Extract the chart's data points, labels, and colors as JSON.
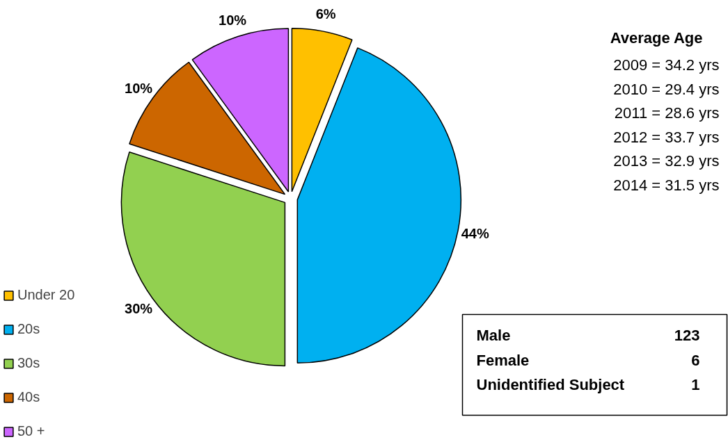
{
  "chart_data": {
    "type": "pie",
    "categories": [
      "Under 20",
      "20s",
      "30s",
      "40s",
      "50 +"
    ],
    "values": [
      6,
      44,
      30,
      10,
      10
    ],
    "colors": [
      "#ffc000",
      "#00b0f0",
      "#92d050",
      "#cc6600",
      "#cc66ff"
    ],
    "value_labels": [
      "6%",
      "44%",
      "30%",
      "10%",
      "10%"
    ],
    "legend": "bottom left",
    "annotations": [
      "Average Age",
      "2009 = 34.2 yrs",
      "2010 = 29.4 yrs",
      "2011 = 28.6 yrs",
      "2012 = 33.7 yrs",
      "2013 = 32.9 yrs",
      "2014 = 31.5 yrs",
      "Male",
      "123",
      "Female",
      "6",
      "Unidentified Subject",
      "1"
    ]
  }
}
